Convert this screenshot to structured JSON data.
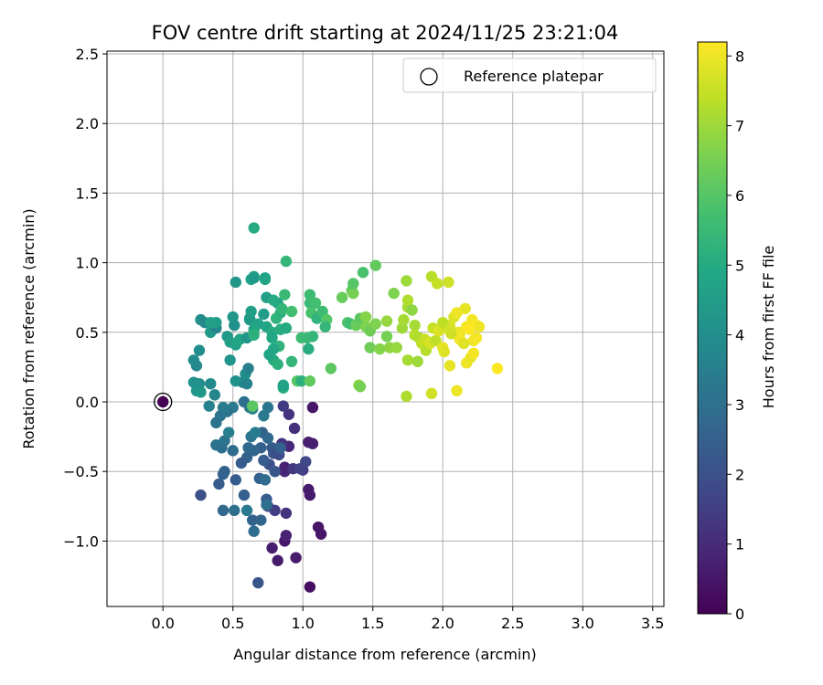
{
  "chart_data": {
    "type": "scatter",
    "title": "FOV centre drift starting at 2024/11/25 23:21:04",
    "xlabel": "Angular distance from reference (arcmin)",
    "ylabel": "Rotation from reference (arcmin)",
    "xlim": [
      -0.4,
      3.58
    ],
    "ylim": [
      -1.47,
      2.52
    ],
    "xticks": [
      0.0,
      0.5,
      1.0,
      1.5,
      2.0,
      2.5,
      3.0,
      3.5
    ],
    "xtick_labels": [
      "0.0",
      "0.5",
      "1.0",
      "1.5",
      "2.0",
      "2.5",
      "3.0",
      "3.5"
    ],
    "yticks": [
      -1.0,
      -0.5,
      0.0,
      0.5,
      1.0,
      1.5,
      2.0,
      2.5
    ],
    "ytick_labels": [
      "−1.0",
      "−0.5",
      "0.0",
      "0.5",
      "1.0",
      "1.5",
      "2.0",
      "2.5"
    ],
    "grid": true,
    "legend": {
      "placement": "top-right",
      "entries": [
        "Reference platepar"
      ]
    },
    "colorbar": {
      "label": "Hours from first FF file",
      "colormap": "viridis",
      "range": [
        0,
        8.2
      ],
      "ticks": [
        0,
        1,
        2,
        3,
        4,
        5,
        6,
        7,
        8
      ],
      "tick_labels": [
        "0",
        "1",
        "2",
        "3",
        "4",
        "5",
        "6",
        "7",
        "8"
      ]
    },
    "reference_point": {
      "x": 0.0,
      "y": 0.0
    },
    "series": [
      {
        "points": [
          [
            0.0,
            0.0,
            0.0
          ],
          [
            1.05,
            -1.33,
            0.3
          ],
          [
            0.87,
            -1.0,
            0.5
          ],
          [
            0.82,
            -1.14,
            0.6
          ],
          [
            0.95,
            -1.12,
            0.6
          ],
          [
            1.11,
            -0.9,
            0.5
          ],
          [
            1.13,
            -0.95,
            0.5
          ],
          [
            0.78,
            -1.05,
            0.7
          ],
          [
            0.88,
            -0.96,
            0.8
          ],
          [
            1.05,
            -0.67,
            0.6
          ],
          [
            1.04,
            -0.63,
            0.6
          ],
          [
            0.87,
            -0.5,
            0.9
          ],
          [
            0.87,
            -0.47,
            0.8
          ],
          [
            1.07,
            -0.3,
            0.7
          ],
          [
            1.04,
            -0.29,
            0.7
          ],
          [
            1.07,
            -0.04,
            0.5
          ],
          [
            0.9,
            -0.32,
            0.9
          ],
          [
            0.85,
            -0.3,
            1.2
          ],
          [
            0.93,
            -0.48,
            1.3
          ],
          [
            0.94,
            -0.19,
            1.1
          ],
          [
            0.9,
            -0.09,
            1.2
          ],
          [
            0.86,
            -0.03,
            1.4
          ],
          [
            1.0,
            -0.49,
            1.5
          ],
          [
            0.98,
            -0.48,
            1.6
          ],
          [
            1.02,
            -0.43,
            1.8
          ],
          [
            0.88,
            -0.8,
            1.2
          ],
          [
            0.8,
            -0.78,
            1.5
          ],
          [
            0.75,
            -0.75,
            1.7
          ],
          [
            0.68,
            -1.3,
            2.2
          ],
          [
            0.27,
            -0.67,
            2.0
          ],
          [
            0.4,
            -0.59,
            2.3
          ],
          [
            0.43,
            -0.52,
            2.5
          ],
          [
            0.44,
            -0.5,
            2.6
          ],
          [
            0.43,
            -0.78,
            2.8
          ],
          [
            0.52,
            -0.56,
            2.4
          ],
          [
            0.58,
            -0.67,
            2.5
          ],
          [
            0.64,
            -0.85,
            2.6
          ],
          [
            0.65,
            -0.93,
            2.9
          ],
          [
            0.7,
            -0.85,
            2.7
          ],
          [
            0.74,
            -0.7,
            2.4
          ],
          [
            0.74,
            -0.74,
            3.0
          ],
          [
            0.69,
            -0.55,
            2.6
          ],
          [
            0.7,
            -0.33,
            2.5
          ],
          [
            0.73,
            -0.56,
            2.9
          ],
          [
            0.78,
            -0.33,
            2.3
          ],
          [
            0.79,
            -0.37,
            2.1
          ],
          [
            0.76,
            -0.45,
            2.0
          ],
          [
            0.83,
            -0.38,
            1.9
          ],
          [
            0.8,
            -0.5,
            2.2
          ],
          [
            0.84,
            -0.33,
            2.6
          ],
          [
            0.72,
            -0.42,
            2.4
          ],
          [
            0.75,
            -0.26,
            2.8
          ],
          [
            0.71,
            -0.22,
            2.6
          ],
          [
            0.65,
            -0.35,
            2.7
          ],
          [
            0.61,
            -0.33,
            2.8
          ],
          [
            0.6,
            -0.4,
            2.6
          ],
          [
            0.56,
            -0.44,
            2.4
          ],
          [
            0.51,
            -0.78,
            3.0
          ],
          [
            0.6,
            -0.78,
            3.3
          ],
          [
            0.63,
            -0.25,
            3.2
          ],
          [
            0.66,
            -0.22,
            3.4
          ],
          [
            0.62,
            -0.04,
            3.2
          ],
          [
            0.64,
            -0.05,
            3.5
          ],
          [
            0.72,
            -0.1,
            3.3
          ],
          [
            0.75,
            -0.04,
            3.2
          ],
          [
            0.58,
            0.0,
            3.0
          ],
          [
            0.5,
            -0.04,
            3.3
          ],
          [
            0.46,
            -0.07,
            3.1
          ],
          [
            0.43,
            -0.04,
            3.4
          ],
          [
            0.41,
            -0.1,
            3.2
          ],
          [
            0.38,
            -0.15,
            3.1
          ],
          [
            0.38,
            -0.31,
            3.1
          ],
          [
            0.42,
            -0.33,
            3.0
          ],
          [
            0.44,
            -0.28,
            3.1
          ],
          [
            0.47,
            -0.22,
            3.5
          ],
          [
            0.5,
            -0.35,
            2.9
          ],
          [
            0.33,
            -0.03,
            3.6
          ],
          [
            0.37,
            0.05,
            3.7
          ],
          [
            0.34,
            0.13,
            3.9
          ],
          [
            0.26,
            0.13,
            4.0
          ],
          [
            0.22,
            0.14,
            4.1
          ],
          [
            0.24,
            0.08,
            4.2
          ],
          [
            0.27,
            0.07,
            4.4
          ],
          [
            0.24,
            0.26,
            3.8
          ],
          [
            0.22,
            0.3,
            3.9
          ],
          [
            0.26,
            0.37,
            4.0
          ],
          [
            0.27,
            0.59,
            4.0
          ],
          [
            0.3,
            0.57,
            3.8
          ],
          [
            0.34,
            0.5,
            4.4
          ],
          [
            0.38,
            0.53,
            3.7
          ],
          [
            0.38,
            0.57,
            4.5
          ],
          [
            0.34,
            0.57,
            4.6
          ],
          [
            0.46,
            0.47,
            4.4
          ],
          [
            0.48,
            0.43,
            4.6
          ],
          [
            0.52,
            0.41,
            4.7
          ],
          [
            0.51,
            0.55,
            4.1
          ],
          [
            0.5,
            0.61,
            4.3
          ],
          [
            0.55,
            0.45,
            4.8
          ],
          [
            0.6,
            0.46,
            4.3
          ],
          [
            0.62,
            0.59,
            4.5
          ],
          [
            0.62,
            0.6,
            4.4
          ],
          [
            0.63,
            0.65,
            4.6
          ],
          [
            0.57,
            0.14,
            3.7
          ],
          [
            0.6,
            0.13,
            3.6
          ],
          [
            0.59,
            0.2,
            4.0
          ],
          [
            0.61,
            0.24,
            3.5
          ],
          [
            0.52,
            0.15,
            4.1
          ],
          [
            0.48,
            0.3,
            4.2
          ],
          [
            0.52,
            0.86,
            4.3
          ],
          [
            0.63,
            0.88,
            4.7
          ],
          [
            0.65,
            0.9,
            4.8
          ],
          [
            0.65,
            0.89,
            4.4
          ],
          [
            0.73,
            0.89,
            4.6
          ],
          [
            0.73,
            0.88,
            4.8
          ],
          [
            0.74,
            0.75,
            4.6
          ],
          [
            0.72,
            0.63,
            4.5
          ],
          [
            0.68,
            0.56,
            4.7
          ],
          [
            0.65,
            0.52,
            4.9
          ],
          [
            0.65,
            0.48,
            5.2
          ],
          [
            0.74,
            0.54,
            4.8
          ],
          [
            0.78,
            0.5,
            5.0
          ],
          [
            0.78,
            0.46,
            4.9
          ],
          [
            0.84,
            0.52,
            5.1
          ],
          [
            0.81,
            0.6,
            5.3
          ],
          [
            0.84,
            0.64,
            5.2
          ],
          [
            0.82,
            0.71,
            4.8
          ],
          [
            0.79,
            0.73,
            5.0
          ],
          [
            0.85,
            0.67,
            5.4
          ],
          [
            0.87,
            0.77,
            5.5
          ],
          [
            0.83,
            0.4,
            5.3
          ],
          [
            0.79,
            0.3,
            5.0
          ],
          [
            0.82,
            0.27,
            5.2
          ],
          [
            0.86,
            0.1,
            5.1
          ],
          [
            0.86,
            0.12,
            4.7
          ],
          [
            0.79,
            0.38,
            4.9
          ],
          [
            0.76,
            0.34,
            4.8
          ],
          [
            0.64,
            -0.03,
            6.1
          ],
          [
            0.65,
            1.25,
            5.0
          ],
          [
            0.88,
            1.01,
            5.4
          ],
          [
            0.88,
            0.53,
            5.0
          ],
          [
            0.92,
            0.65,
            5.7
          ],
          [
            0.92,
            0.29,
            5.4
          ],
          [
            0.96,
            0.15,
            6.0
          ],
          [
            0.99,
            0.15,
            5.2
          ],
          [
            0.99,
            0.46,
            5.6
          ],
          [
            1.03,
            0.46,
            5.5
          ],
          [
            1.04,
            0.38,
            5.1
          ],
          [
            1.05,
            0.71,
            5.5
          ],
          [
            1.05,
            0.77,
            5.6
          ],
          [
            1.06,
            0.64,
            5.8
          ],
          [
            1.07,
            0.47,
            5.4
          ],
          [
            1.09,
            0.71,
            5.7
          ],
          [
            1.1,
            0.6,
            5.3
          ],
          [
            1.14,
            0.65,
            5.6
          ],
          [
            1.17,
            0.59,
            6.0
          ],
          [
            1.16,
            0.54,
            5.4
          ],
          [
            1.05,
            0.15,
            6.2
          ],
          [
            1.2,
            0.24,
            6.1
          ],
          [
            1.28,
            0.75,
            6.3
          ],
          [
            1.32,
            0.57,
            5.9
          ],
          [
            1.34,
            0.56,
            5.7
          ],
          [
            1.35,
            0.8,
            6.2
          ],
          [
            1.36,
            0.78,
            6.5
          ],
          [
            1.36,
            0.85,
            6.0
          ],
          [
            1.38,
            0.55,
            6.3
          ],
          [
            1.41,
            0.6,
            6.1
          ],
          [
            1.45,
            0.54,
            6.6
          ],
          [
            1.45,
            0.61,
            6.7
          ],
          [
            1.48,
            0.51,
            6.4
          ],
          [
            1.43,
            0.93,
            5.8
          ],
          [
            1.52,
            0.98,
            6.2
          ],
          [
            1.4,
            0.12,
            6.8
          ],
          [
            1.41,
            0.11,
            6.5
          ],
          [
            1.48,
            0.39,
            6.4
          ],
          [
            1.52,
            0.56,
            6.6
          ],
          [
            1.55,
            0.38,
            6.7
          ],
          [
            1.6,
            0.47,
            6.5
          ],
          [
            1.6,
            0.58,
            6.9
          ],
          [
            1.65,
            0.78,
            6.6
          ],
          [
            1.62,
            0.39,
            6.8
          ],
          [
            1.67,
            0.39,
            6.9
          ],
          [
            1.71,
            0.53,
            7.0
          ],
          [
            1.72,
            0.59,
            7.1
          ],
          [
            1.74,
            0.04,
            7.2
          ],
          [
            1.74,
            0.87,
            7.0
          ],
          [
            1.75,
            0.68,
            7.1
          ],
          [
            1.75,
            0.73,
            7.2
          ],
          [
            1.75,
            0.3,
            7.1
          ],
          [
            1.78,
            0.66,
            6.8
          ],
          [
            1.8,
            0.55,
            7.1
          ],
          [
            1.8,
            0.48,
            7.3
          ],
          [
            1.82,
            0.29,
            7.0
          ],
          [
            1.83,
            0.46,
            7.2
          ],
          [
            1.85,
            0.42,
            7.4
          ],
          [
            1.87,
            0.45,
            7.5
          ],
          [
            1.88,
            0.37,
            7.3
          ],
          [
            1.9,
            0.43,
            7.6
          ],
          [
            1.91,
            0.42,
            7.7
          ],
          [
            1.92,
            0.06,
            7.6
          ],
          [
            1.92,
            0.9,
            7.3
          ],
          [
            1.93,
            0.53,
            7.5
          ],
          [
            1.95,
            0.44,
            7.4
          ],
          [
            1.96,
            0.85,
            7.5
          ],
          [
            1.97,
            0.51,
            7.8
          ],
          [
            2.0,
            0.53,
            7.7
          ],
          [
            2.0,
            0.39,
            7.9
          ],
          [
            2.01,
            0.36,
            7.8
          ],
          [
            2.02,
            0.55,
            7.6
          ],
          [
            2.04,
            0.86,
            7.6
          ],
          [
            2.05,
            0.55,
            7.7
          ],
          [
            2.05,
            0.26,
            7.9
          ],
          [
            2.08,
            0.61,
            7.8
          ],
          [
            2.1,
            0.64,
            8.0
          ],
          [
            2.11,
            0.5,
            7.9
          ],
          [
            2.12,
            0.48,
            8.0
          ],
          [
            2.1,
            0.08,
            8.0
          ],
          [
            2.12,
            0.45,
            8.1
          ],
          [
            2.15,
            0.42,
            7.8
          ],
          [
            2.16,
            0.67,
            7.9
          ],
          [
            2.17,
            0.28,
            8.0
          ],
          [
            2.17,
            0.54,
            8.1
          ],
          [
            2.19,
            0.52,
            8.2
          ],
          [
            2.2,
            0.32,
            7.9
          ],
          [
            2.21,
            0.59,
            8.1
          ],
          [
            2.22,
            0.44,
            8.0
          ],
          [
            2.22,
            0.35,
            8.1
          ],
          [
            2.24,
            0.55,
            8.2
          ],
          [
            2.24,
            0.46,
            8.1
          ],
          [
            2.26,
            0.54,
            8.0
          ],
          [
            2.39,
            0.24,
            8.2
          ],
          [
            2.0,
            0.57,
            7.4
          ],
          [
            2.06,
            0.49,
            7.6
          ]
        ]
      }
    ]
  }
}
